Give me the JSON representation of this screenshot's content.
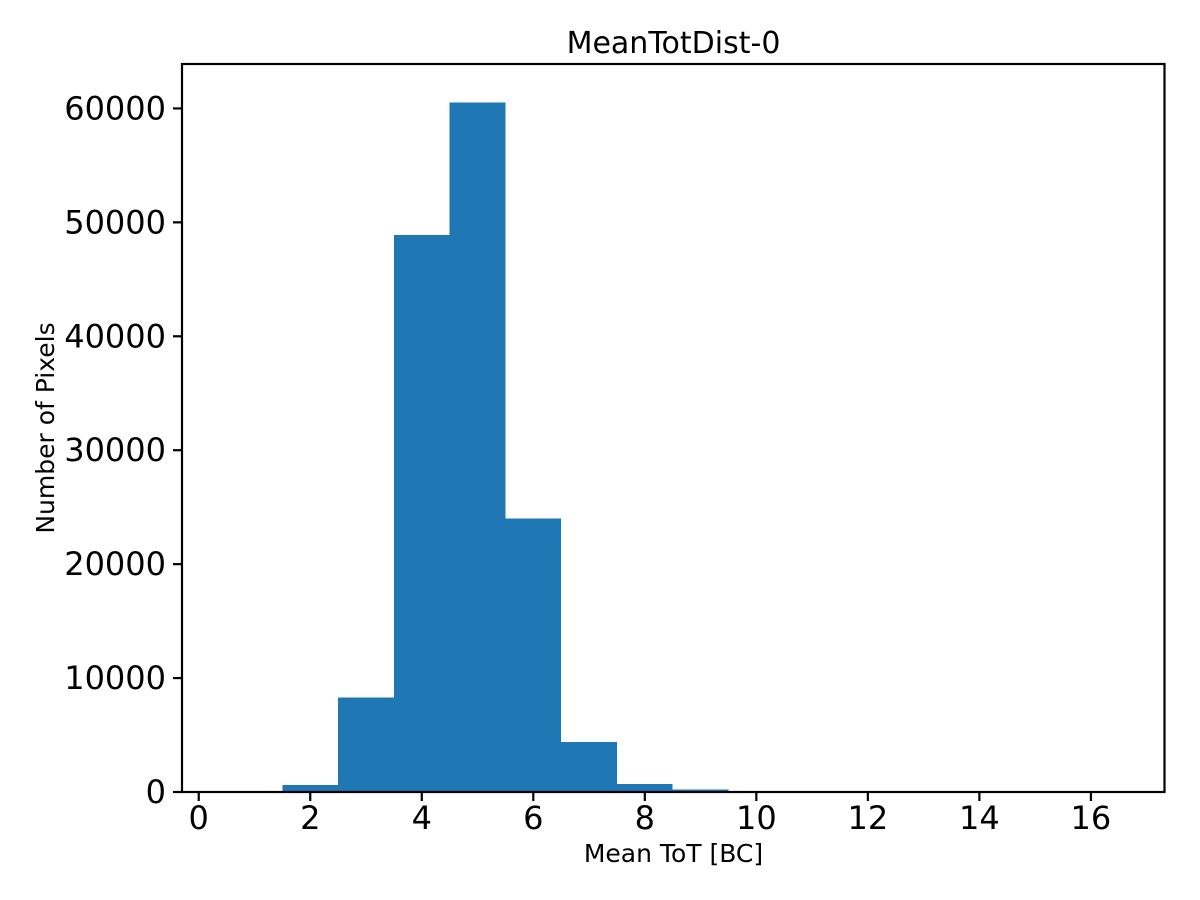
{
  "figure": {
    "background": "#ffffff",
    "text_color": "#000000",
    "spine_color": "#000000"
  },
  "chart_data": {
    "type": "bar",
    "subtype": "histogram",
    "title": "MeanTotDist-0",
    "xlabel": "Mean ToT [BC]",
    "ylabel": "Number of Pixels",
    "bar_color": "#1f77b4",
    "bin_edges": [
      1.5,
      2.5,
      3.5,
      4.5,
      5.5,
      6.5,
      7.5,
      8.5,
      9.5
    ],
    "values": [
      600,
      8300,
      48900,
      60500,
      24000,
      4400,
      700,
      200
    ],
    "xticks": [
      0,
      2,
      4,
      6,
      8,
      10,
      12,
      14,
      16
    ],
    "yticks": [
      0,
      10000,
      20000,
      30000,
      40000,
      50000,
      60000
    ],
    "xlim": [
      -0.3,
      17.32
    ],
    "ylim": [
      0,
      63900
    ],
    "grid": false,
    "legend_position": "none"
  }
}
